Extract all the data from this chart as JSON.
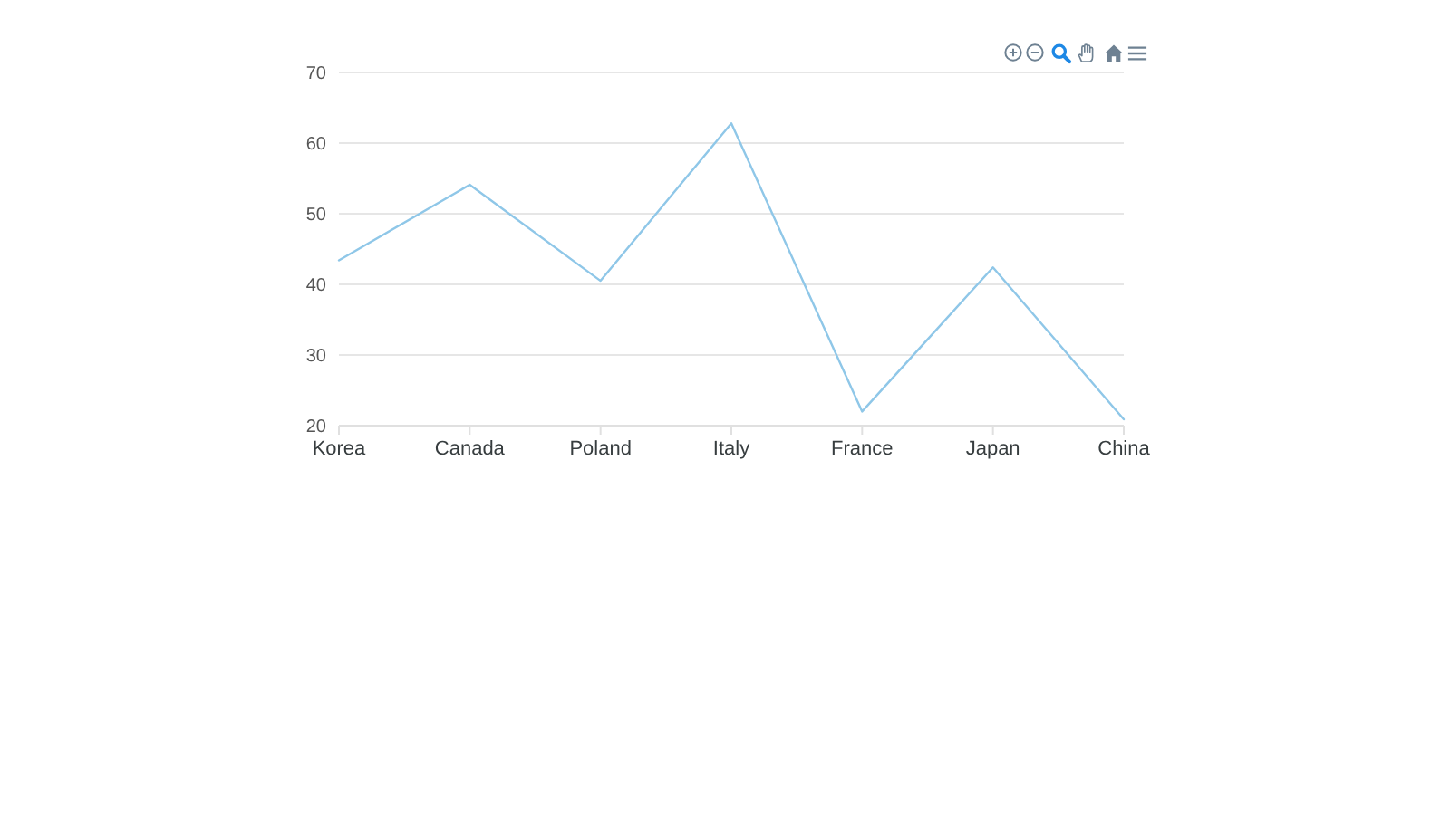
{
  "chart_data": {
    "type": "line",
    "categories": [
      "Korea",
      "Canada",
      "Poland",
      "Italy",
      "France",
      "Japan",
      "China"
    ],
    "series": [
      {
        "color": "#8fc7e8",
        "values": [
          43.4,
          54.1,
          40.5,
          62.8,
          22.0,
          42.4,
          20.9
        ]
      }
    ],
    "ylim": [
      20,
      70
    ],
    "yticks": [
      20,
      30,
      40,
      50,
      60,
      70
    ],
    "grid": "y",
    "marker": "none",
    "line_style": "solid"
  }
}
